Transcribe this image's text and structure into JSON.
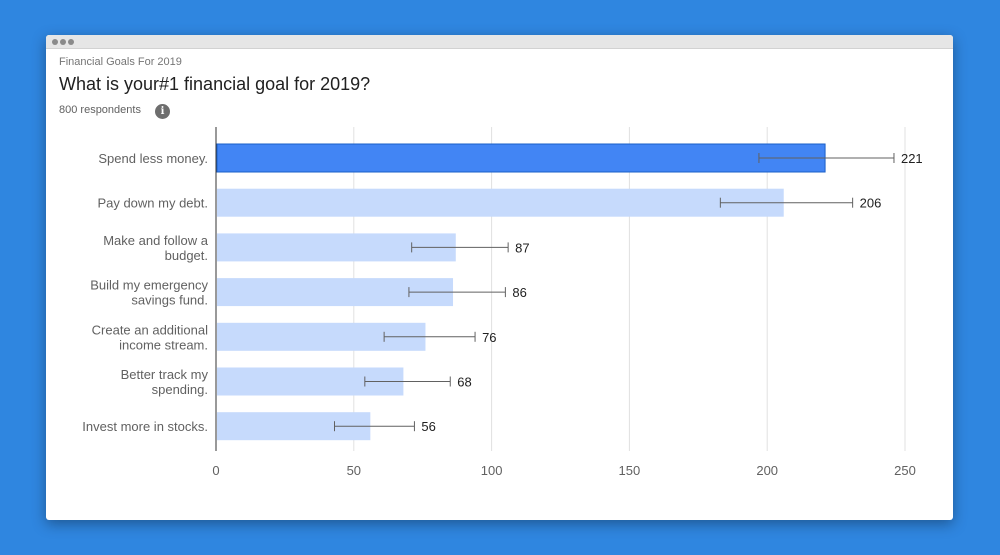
{
  "header": {
    "subtitle": "Financial Goals For 2019",
    "title": "What is your#1 financial goal for 2019?",
    "respondents": "800 respondents",
    "info_icon": "i"
  },
  "colors": {
    "highlight_bar": "#4285f4",
    "bar": "#c6dafc",
    "error_bar": "#616161",
    "grid": "#e0e0e0"
  },
  "chart_data": {
    "type": "bar",
    "orientation": "horizontal",
    "title": "What is your#1 financial goal for 2019?",
    "categories": [
      [
        "Spend less money."
      ],
      [
        "Pay down my debt."
      ],
      [
        "Make and follow a",
        "budget."
      ],
      [
        "Build my emergency",
        "savings fund."
      ],
      [
        "Create an additional",
        "income stream."
      ],
      [
        "Better track my",
        "spending."
      ],
      [
        "Invest more in stocks."
      ]
    ],
    "values": [
      221,
      206,
      87,
      86,
      76,
      68,
      56
    ],
    "error_low": [
      197,
      183,
      71,
      70,
      61,
      54,
      43
    ],
    "error_high": [
      246,
      231,
      106,
      105,
      94,
      85,
      72
    ],
    "highlighted_index": 0,
    "xlim": [
      0,
      250
    ],
    "xticks": [
      0,
      50,
      100,
      150,
      200,
      250
    ],
    "grid": true,
    "legend": "none"
  }
}
